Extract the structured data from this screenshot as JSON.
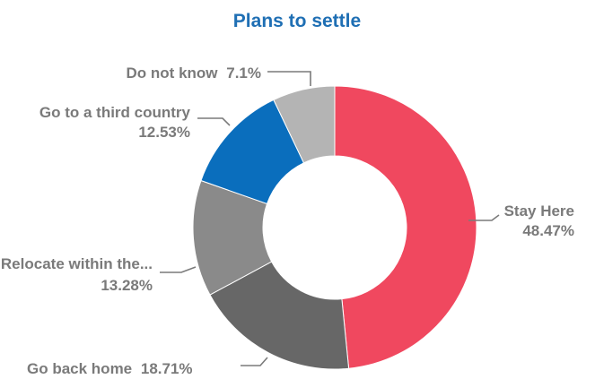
{
  "chart_data": {
    "type": "pie",
    "variant": "donut",
    "title": "Plans to settle",
    "title_color": "#1f6fb4",
    "label_color": "#7a7a7a",
    "slices": [
      {
        "label": "Stay Here",
        "value": 48.47,
        "text": "48.47%",
        "color": "#f0485f"
      },
      {
        "label": "Go back home",
        "value": 18.71,
        "text": "18.71%",
        "color": "#676767"
      },
      {
        "label": "Relocate within the...",
        "value": 13.28,
        "text": "13.28%",
        "color": "#8a8a8a"
      },
      {
        "label": "Go to a third country",
        "value": 12.53,
        "text": "12.53%",
        "color": "#0a6ebd"
      },
      {
        "label": "Do not know",
        "value": 7.1,
        "text": "7.1%",
        "color": "#b4b4b4"
      }
    ]
  }
}
